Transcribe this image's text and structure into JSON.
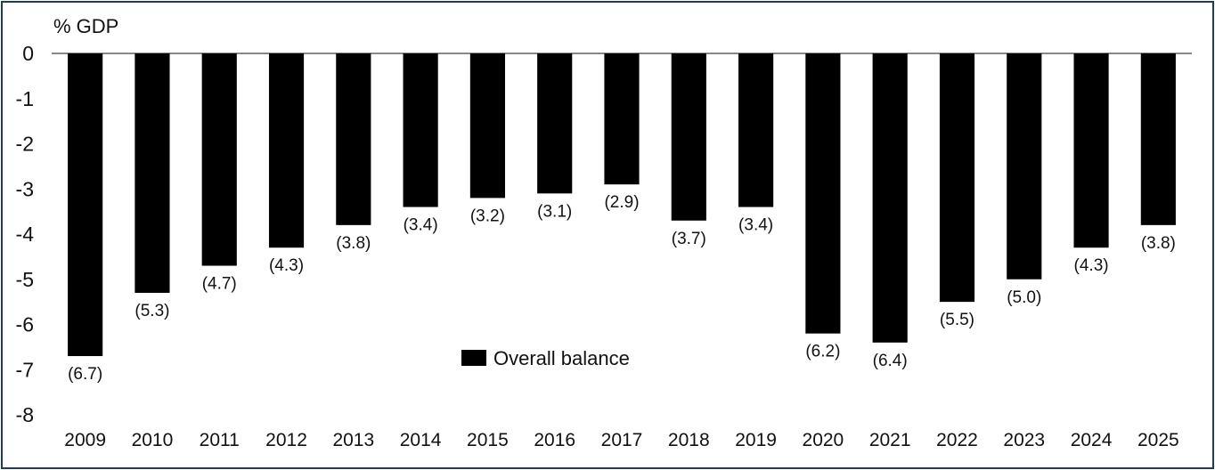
{
  "chart_data": {
    "type": "bar",
    "ylabel": "% GDP",
    "ylim": [
      -8,
      0
    ],
    "yticks": [
      "0",
      "-1",
      "-2",
      "-3",
      "-4",
      "-5",
      "-6",
      "-7",
      "-8"
    ],
    "ytick_values": [
      0,
      -1,
      -2,
      -3,
      -4,
      -5,
      -6,
      -7,
      -8
    ],
    "categories": [
      "2009",
      "2010",
      "2011",
      "2012",
      "2013",
      "2014",
      "2015",
      "2016",
      "2017",
      "2018",
      "2019",
      "2020",
      "2021",
      "2022",
      "2023",
      "2024",
      "2025"
    ],
    "series": [
      {
        "name": "Overall balance",
        "color": "#000000",
        "values": [
          -6.7,
          -5.3,
          -4.7,
          -4.3,
          -3.8,
          -3.4,
          -3.2,
          -3.1,
          -2.9,
          -3.7,
          -3.4,
          -6.2,
          -6.4,
          -5.5,
          -5.0,
          -4.3,
          -3.8
        ],
        "labels": [
          "(6.7)",
          "(5.3)",
          "(4.7)",
          "(4.3)",
          "(3.8)",
          "(3.4)",
          "(3.2)",
          "(3.1)",
          "(2.9)",
          "(3.7)",
          "(3.4)",
          "(6.2)",
          "(6.4)",
          "(5.5)",
          "(5.0)",
          "(4.3)",
          "(3.8)"
        ]
      }
    ],
    "legend_position": "bottom-center",
    "grid": false
  }
}
